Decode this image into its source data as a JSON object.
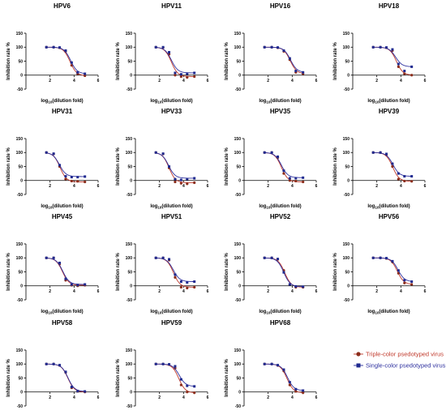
{
  "colors": {
    "triple": "#c0392b",
    "triple_marker": "#8b2d1b",
    "single": "#2c2f9e",
    "single_marker": "#1f2a8f",
    "axis": "#000000"
  },
  "legend": {
    "position": "bottom-right",
    "items": [
      {
        "label": "Triple-color psedotyped virus",
        "color": "#c0392b",
        "marker": "circle"
      },
      {
        "label": "Single-color psedotyped virus",
        "color": "#2c2f9e",
        "marker": "square"
      }
    ]
  },
  "chart_data": [
    {
      "type": "scatter",
      "title": "HPV6",
      "ylabel": "Inhibition rate %",
      "xlabel": "log10(dilution fold)",
      "xlim": [
        0,
        6
      ],
      "ylim": [
        -50,
        150
      ],
      "x_ticks": [
        2,
        4,
        6
      ],
      "y_ticks": [
        -50,
        0,
        50,
        100,
        150
      ],
      "x": [
        1.7,
        2.3,
        2.8,
        3.3,
        3.8,
        4.3,
        4.9
      ],
      "series": [
        {
          "name": "Triple-color psedotyped virus",
          "values": [
            100,
            100,
            98,
            85,
            35,
            5,
            -2
          ]
        },
        {
          "name": "Single-color psedotyped virus",
          "values": [
            100,
            100,
            99,
            88,
            45,
            10,
            5
          ]
        }
      ]
    },
    {
      "type": "scatter",
      "title": "HPV11",
      "ylabel": "Inhibition rate %",
      "xlabel": "log10(dilution fold)",
      "xlim": [
        0,
        6
      ],
      "ylim": [
        -50,
        150
      ],
      "x_ticks": [
        2,
        4,
        6
      ],
      "y_ticks": [
        -50,
        0,
        50,
        100,
        150
      ],
      "x": [
        1.7,
        2.3,
        2.8,
        3.3,
        3.8,
        4.3,
        4.9
      ],
      "series": [
        {
          "name": "Triple-color psedotyped virus",
          "values": [
            100,
            99,
            75,
            0,
            -5,
            -8,
            -5
          ]
        },
        {
          "name": "Single-color psedotyped virus",
          "values": [
            100,
            100,
            82,
            8,
            3,
            5,
            8
          ]
        }
      ]
    },
    {
      "type": "scatter",
      "title": "HPV16",
      "ylabel": "Inhibition rate %",
      "xlabel": "log10(dilution fold)",
      "xlim": [
        0,
        6
      ],
      "ylim": [
        -50,
        150
      ],
      "x_ticks": [
        2,
        4,
        6
      ],
      "y_ticks": [
        -50,
        0,
        50,
        100,
        150
      ],
      "x": [
        1.7,
        2.3,
        2.8,
        3.3,
        3.8,
        4.3,
        4.9
      ],
      "series": [
        {
          "name": "Triple-color psedotyped virus",
          "values": [
            100,
            100,
            98,
            85,
            55,
            10,
            5
          ]
        },
        {
          "name": "Single-color psedotyped virus",
          "values": [
            100,
            100,
            99,
            88,
            60,
            15,
            10
          ]
        }
      ]
    },
    {
      "type": "scatter",
      "title": "HPV18",
      "ylabel": "Inhibition rate %",
      "xlabel": "log10(dilution fold)",
      "xlim": [
        0,
        6
      ],
      "ylim": [
        -50,
        150
      ],
      "x_ticks": [
        2,
        4,
        6
      ],
      "y_ticks": [
        -50,
        0,
        50,
        100,
        150
      ],
      "x": [
        1.7,
        2.3,
        2.8,
        3.3,
        3.8,
        4.3,
        4.9
      ],
      "series": [
        {
          "name": "Triple-color psedotyped virus",
          "values": [
            100,
            100,
            98,
            88,
            30,
            5,
            0
          ]
        },
        {
          "name": "Single-color psedotyped virus",
          "values": [
            100,
            100,
            99,
            92,
            40,
            15,
            30
          ]
        }
      ]
    },
    {
      "type": "scatter",
      "title": "HPV31",
      "ylabel": "Inhibition rate %",
      "xlabel": "log10(dilution fold)",
      "xlim": [
        0,
        6
      ],
      "ylim": [
        -50,
        150
      ],
      "x_ticks": [
        2,
        4,
        6
      ],
      "y_ticks": [
        -50,
        0,
        50,
        100,
        150
      ],
      "x": [
        1.7,
        2.3,
        2.8,
        3.3,
        3.8,
        4.3,
        4.9
      ],
      "series": [
        {
          "name": "Triple-color psedotyped virus",
          "values": [
            100,
            95,
            50,
            5,
            -2,
            -3,
            -5
          ]
        },
        {
          "name": "Single-color psedotyped virus",
          "values": [
            100,
            96,
            55,
            15,
            12,
            12,
            14
          ]
        }
      ]
    },
    {
      "type": "scatter",
      "title": "HPV33",
      "ylabel": "Inhibition rate %",
      "xlabel": "log10(dilution fold)",
      "xlim": [
        0,
        6
      ],
      "ylim": [
        -50,
        150
      ],
      "x_ticks": [
        2,
        4,
        6
      ],
      "y_ticks": [
        -50,
        0,
        50,
        100,
        150
      ],
      "x": [
        1.7,
        2.3,
        2.8,
        3.3,
        3.8,
        4.3,
        4.9
      ],
      "series": [
        {
          "name": "Triple-color psedotyped virus",
          "values": [
            100,
            95,
            45,
            -5,
            -10,
            -12,
            -8
          ]
        },
        {
          "name": "Single-color psedotyped virus",
          "values": [
            100,
            96,
            50,
            5,
            2,
            5,
            8
          ]
        }
      ]
    },
    {
      "type": "scatter",
      "title": "HPV35",
      "ylabel": "Inhibition rate %",
      "xlabel": "log10(dilution fold)",
      "xlim": [
        0,
        6
      ],
      "ylim": [
        -50,
        150
      ],
      "x_ticks": [
        2,
        4,
        6
      ],
      "y_ticks": [
        -50,
        0,
        50,
        100,
        150
      ],
      "x": [
        1.7,
        2.3,
        2.8,
        3.3,
        3.8,
        4.3,
        4.9
      ],
      "series": [
        {
          "name": "Triple-color psedotyped virus",
          "values": [
            100,
            100,
            82,
            25,
            0,
            -2,
            -5
          ]
        },
        {
          "name": "Single-color psedotyped virus",
          "values": [
            100,
            100,
            85,
            35,
            8,
            8,
            10
          ]
        }
      ]
    },
    {
      "type": "scatter",
      "title": "HPV39",
      "ylabel": "Inhibition rate %",
      "xlabel": "log10(dilution fold)",
      "xlim": [
        0,
        6
      ],
      "ylim": [
        -50,
        150
      ],
      "x_ticks": [
        2,
        4,
        6
      ],
      "y_ticks": [
        -50,
        0,
        50,
        100,
        150
      ],
      "x": [
        1.7,
        2.3,
        2.8,
        3.3,
        3.8,
        4.3,
        4.9
      ],
      "series": [
        {
          "name": "Triple-color psedotyped virus",
          "values": [
            100,
            100,
            92,
            50,
            5,
            -2,
            -3
          ]
        },
        {
          "name": "Single-color psedotyped virus",
          "values": [
            100,
            100,
            95,
            60,
            25,
            15,
            15
          ]
        }
      ]
    },
    {
      "type": "scatter",
      "title": "HPV45",
      "ylabel": "Inhibition rate %",
      "xlabel": "log10(dilution fold)",
      "xlim": [
        0,
        6
      ],
      "ylim": [
        -50,
        150
      ],
      "x_ticks": [
        2,
        4,
        6
      ],
      "y_ticks": [
        -50,
        0,
        50,
        100,
        150
      ],
      "x": [
        1.7,
        2.3,
        2.8,
        3.3,
        3.8,
        4.3,
        4.9
      ],
      "series": [
        {
          "name": "Triple-color psedotyped virus",
          "values": [
            100,
            100,
            78,
            20,
            2,
            0,
            2
          ]
        },
        {
          "name": "Single-color psedotyped virus",
          "values": [
            100,
            100,
            82,
            25,
            5,
            3,
            5
          ]
        }
      ]
    },
    {
      "type": "scatter",
      "title": "HPV51",
      "ylabel": "Inhibition rate %",
      "xlabel": "log10(dilution fold)",
      "xlim": [
        0,
        6
      ],
      "ylim": [
        -50,
        150
      ],
      "x_ticks": [
        2,
        4,
        6
      ],
      "y_ticks": [
        -50,
        0,
        50,
        100,
        150
      ],
      "x": [
        1.7,
        2.3,
        2.8,
        3.3,
        3.8,
        4.3,
        4.9
      ],
      "series": [
        {
          "name": "Triple-color psedotyped virus",
          "values": [
            100,
            100,
            92,
            30,
            -5,
            -8,
            -5
          ]
        },
        {
          "name": "Single-color psedotyped virus",
          "values": [
            100,
            100,
            95,
            40,
            15,
            12,
            15
          ]
        }
      ]
    },
    {
      "type": "scatter",
      "title": "HPV52",
      "ylabel": "Inhibition rate %",
      "xlabel": "log10(dilution fold)",
      "xlim": [
        0,
        6
      ],
      "ylim": [
        -50,
        150
      ],
      "x_ticks": [
        2,
        4,
        6
      ],
      "y_ticks": [
        -50,
        0,
        50,
        100,
        150
      ],
      "x": [
        1.7,
        2.3,
        2.8,
        3.3,
        3.8,
        4.3,
        4.9
      ],
      "series": [
        {
          "name": "Triple-color psedotyped virus",
          "values": [
            100,
            100,
            95,
            55,
            5,
            -5,
            -5
          ]
        },
        {
          "name": "Single-color psedotyped virus",
          "values": [
            100,
            100,
            96,
            48,
            5,
            -2,
            -3
          ]
        }
      ]
    },
    {
      "type": "scatter",
      "title": "HPV56",
      "ylabel": "Inhibition rate %",
      "xlabel": "log10(dilution fold)",
      "xlim": [
        0,
        6
      ],
      "ylim": [
        -50,
        150
      ],
      "x_ticks": [
        2,
        4,
        6
      ],
      "y_ticks": [
        -50,
        0,
        50,
        100,
        150
      ],
      "x": [
        1.7,
        2.3,
        2.8,
        3.3,
        3.8,
        4.3,
        4.9
      ],
      "series": [
        {
          "name": "Triple-color psedotyped virus",
          "values": [
            100,
            100,
            98,
            85,
            45,
            10,
            5
          ]
        },
        {
          "name": "Single-color psedotyped virus",
          "values": [
            100,
            100,
            99,
            88,
            55,
            20,
            15
          ]
        }
      ]
    },
    {
      "type": "scatter",
      "title": "HPV58",
      "ylabel": "Inhibition rate %",
      "xlabel": "log10(dilution fold)",
      "xlim": [
        0,
        6
      ],
      "ylim": [
        -50,
        150
      ],
      "x_ticks": [
        2,
        4,
        6
      ],
      "y_ticks": [
        -50,
        0,
        50,
        100,
        150
      ],
      "x": [
        1.7,
        2.3,
        2.8,
        3.3,
        3.8,
        4.3,
        4.9
      ],
      "series": [
        {
          "name": "Triple-color psedotyped virus",
          "values": [
            100,
            100,
            95,
            70,
            15,
            2,
            0
          ]
        },
        {
          "name": "Single-color psedotyped virus",
          "values": [
            100,
            100,
            96,
            72,
            18,
            3,
            2
          ]
        }
      ]
    },
    {
      "type": "scatter",
      "title": "HPV59",
      "ylabel": "Inhibition rate %",
      "xlabel": "log10(dilution fold)",
      "xlim": [
        0,
        6
      ],
      "ylim": [
        -50,
        150
      ],
      "x_ticks": [
        2,
        4,
        6
      ],
      "y_ticks": [
        -50,
        0,
        50,
        100,
        150
      ],
      "x": [
        1.7,
        2.3,
        2.8,
        3.3,
        3.8,
        4.3,
        4.9
      ],
      "series": [
        {
          "name": "Triple-color psedotyped virus",
          "values": [
            100,
            100,
            98,
            85,
            25,
            0,
            -3
          ]
        },
        {
          "name": "Single-color psedotyped virus",
          "values": [
            100,
            100,
            99,
            92,
            45,
            22,
            20
          ]
        }
      ]
    },
    {
      "type": "scatter",
      "title": "HPV68",
      "ylabel": "Inhibition rate %",
      "xlabel": "log10(dilution fold)",
      "xlim": [
        0,
        6
      ],
      "ylim": [
        -50,
        150
      ],
      "x_ticks": [
        2,
        4,
        6
      ],
      "y_ticks": [
        -50,
        0,
        50,
        100,
        150
      ],
      "x": [
        1.7,
        2.3,
        2.8,
        3.3,
        3.8,
        4.3,
        4.9
      ],
      "series": [
        {
          "name": "Triple-color psedotyped virus",
          "values": [
            100,
            100,
            95,
            75,
            25,
            2,
            -3
          ]
        },
        {
          "name": "Single-color psedotyped virus",
          "values": [
            100,
            100,
            96,
            80,
            35,
            10,
            5
          ]
        }
      ]
    }
  ]
}
